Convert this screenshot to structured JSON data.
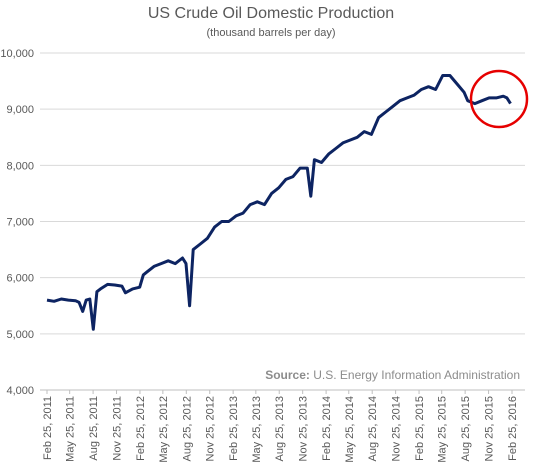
{
  "chart_data": {
    "type": "line",
    "title": "US Crude Oil Domestic Production",
    "subtitle": "(thousand barrels per day)",
    "source_label": "Source:",
    "source": "U.S. Energy Information Administration",
    "ylim": [
      4000,
      10000
    ],
    "yticks": [
      {
        "value": 4000,
        "label": "4,000"
      },
      {
        "value": 5000,
        "label": "5,000"
      },
      {
        "value": 6000,
        "label": "6,000"
      },
      {
        "value": 7000,
        "label": "7,000"
      },
      {
        "value": 8000,
        "label": "8,000"
      },
      {
        "value": 9000,
        "label": "9,000"
      },
      {
        "value": 10000,
        "label": "10,000"
      }
    ],
    "xticks": [
      "Feb 25, 2011",
      "May 25, 2011",
      "Aug 25, 2011",
      "Nov 25, 2011",
      "Feb 25, 2012",
      "May 25, 2012",
      "Aug 25, 2012",
      "Nov 25, 2012",
      "Feb 25, 2013",
      "May 25, 2013",
      "Aug 25, 2013",
      "Nov 25, 2013",
      "Feb 25, 2014",
      "May 25, 2014",
      "Aug 25, 2014",
      "Nov 25, 2014",
      "Feb 25, 2015",
      "May 25, 2015",
      "Aug 25, 2015",
      "Nov 25, 2015",
      "Feb 25, 2016"
    ],
    "grid": true,
    "series": [
      {
        "color": "#0d2462",
        "x": [
          "Feb 25, 2011",
          "Mar 25, 2011",
          "Apr 22, 2011",
          "May 20, 2011",
          "Jun 17, 2011",
          "Jul 1, 2011",
          "Jul 15, 2011",
          "Jul 29, 2011",
          "Aug 12, 2011",
          "Aug 26, 2011",
          "Sep 9, 2011",
          "Sep 23, 2011",
          "Oct 21, 2011",
          "Nov 18, 2011",
          "Dec 16, 2011",
          "Dec 30, 2011",
          "Jan 27, 2012",
          "Feb 24, 2012",
          "Mar 9, 2012",
          "Mar 23, 2012",
          "Apr 20, 2012",
          "May 18, 2012",
          "Jun 15, 2012",
          "Jul 13, 2012",
          "Aug 10, 2012",
          "Aug 24, 2012",
          "Sep 7, 2012",
          "Sep 21, 2012",
          "Oct 19, 2012",
          "Nov 16, 2012",
          "Dec 14, 2012",
          "Jan 11, 2013",
          "Feb 8, 2013",
          "Mar 8, 2013",
          "Apr 5, 2013",
          "May 3, 2013",
          "May 31, 2013",
          "Jun 28, 2013",
          "Jul 26, 2013",
          "Aug 23, 2013",
          "Sep 20, 2013",
          "Oct 18, 2013",
          "Nov 15, 2013",
          "Dec 13, 2013",
          "Dec 27, 2013",
          "Jan 10, 2014",
          "Feb 7, 2014",
          "Mar 7, 2014",
          "Apr 4, 2014",
          "May 2, 2014",
          "May 30, 2014",
          "Jun 27, 2014",
          "Jul 25, 2014",
          "Aug 22, 2014",
          "Sep 19, 2014",
          "Oct 17, 2014",
          "Nov 14, 2014",
          "Dec 12, 2014",
          "Jan 9, 2015",
          "Feb 6, 2015",
          "Mar 6, 2015",
          "Apr 3, 2015",
          "May 1, 2015",
          "May 29, 2015",
          "Jun 26, 2015",
          "Jul 24, 2015",
          "Aug 21, 2015",
          "Sep 4, 2015",
          "Oct 2, 2015",
          "Oct 30, 2015",
          "Nov 27, 2015",
          "Dec 25, 2015",
          "Jan 22, 2016",
          "Feb 5, 2016",
          "Feb 19, 2016"
        ],
        "values": [
          5600,
          5580,
          5620,
          5600,
          5590,
          5560,
          5400,
          5600,
          5620,
          5080,
          5750,
          5800,
          5880,
          5870,
          5850,
          5730,
          5800,
          5830,
          6050,
          6100,
          6200,
          6250,
          6300,
          6250,
          6350,
          6250,
          5500,
          6500,
          6600,
          6700,
          6900,
          7000,
          7000,
          7100,
          7150,
          7300,
          7350,
          7300,
          7500,
          7600,
          7750,
          7800,
          7950,
          7950,
          7450,
          8100,
          8050,
          8200,
          8300,
          8400,
          8450,
          8500,
          8600,
          8550,
          8850,
          8950,
          9050,
          9150,
          9200,
          9250,
          9350,
          9400,
          9350,
          9600,
          9600,
          9450,
          9300,
          9150,
          9100,
          9150,
          9200,
          9200,
          9230,
          9200,
          9100
        ]
      }
    ]
  }
}
